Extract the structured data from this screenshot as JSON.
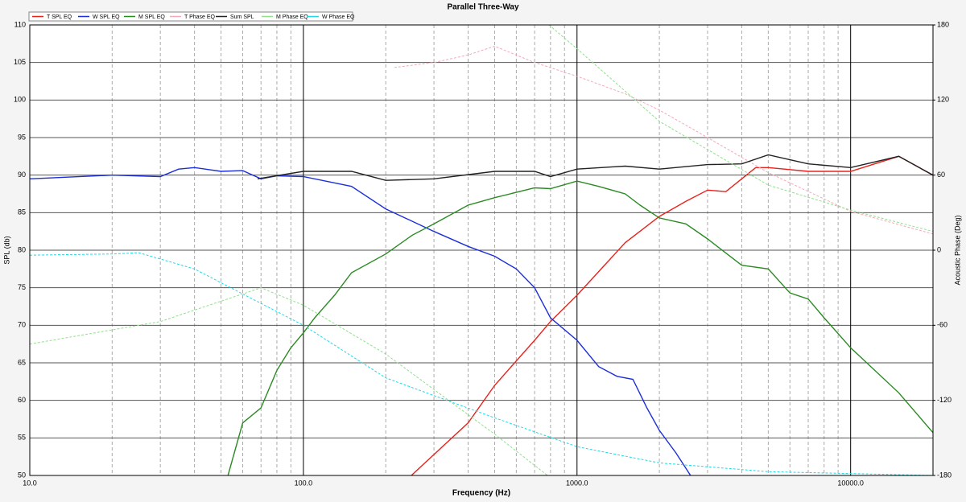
{
  "chart_data": {
    "type": "line",
    "title": "Parallel Three-Way",
    "x_label": "Frequency (Hz)",
    "y_label": "SPL (db)",
    "y2_label": "Acoustic Phase (Deg)",
    "xscale": "log",
    "xlim": [
      10,
      20000
    ],
    "xticks": [
      {
        "value": 10,
        "label": "10.0"
      },
      {
        "value": 100,
        "label": "100.0"
      },
      {
        "value": 1000,
        "label": "1000.0"
      },
      {
        "value": 10000,
        "label": "10000.0"
      }
    ],
    "x_minor_gridlines": [
      20,
      30,
      40,
      50,
      60,
      70,
      80,
      90,
      200,
      300,
      400,
      500,
      600,
      700,
      800,
      900,
      2000,
      3000,
      4000,
      5000,
      6000,
      7000,
      8000,
      9000
    ],
    "ylim": [
      50,
      110
    ],
    "yticks": [
      50,
      55,
      60,
      65,
      70,
      75,
      80,
      85,
      90,
      95,
      100,
      105,
      110
    ],
    "y2lim": [
      -180,
      180
    ],
    "y2ticks": [
      -180,
      -120,
      -60,
      0,
      60,
      120,
      180
    ],
    "grid": true,
    "legend": "top",
    "series": [
      {
        "name": "T SPL EQ",
        "color": "#e8231c",
        "x": [
          248,
          400,
          500,
          700,
          800,
          1000,
          1500,
          2000,
          2500,
          3000,
          3500,
          4000,
          4500,
          5000,
          7000,
          10000,
          15000,
          20000
        ],
        "values": [
          50,
          57,
          62,
          68,
          70.5,
          74,
          81,
          84.5,
          86.5,
          88,
          87.8,
          89.5,
          91,
          91,
          90.5,
          90.5,
          92.5,
          90
        ]
      },
      {
        "name": "W SPL EQ",
        "color": "#1c2fd6",
        "x": [
          10,
          20,
          30,
          35,
          40,
          50,
          60,
          70,
          80,
          100,
          150,
          200,
          300,
          400,
          500,
          600,
          700,
          800,
          1000,
          1200,
          1400,
          1600,
          1800,
          2000,
          2300,
          2600
        ],
        "values": [
          89.5,
          90,
          89.8,
          90.8,
          91,
          90.5,
          90.6,
          89.5,
          89.9,
          89.8,
          88.5,
          85.5,
          82.5,
          80.5,
          79.2,
          77.5,
          75,
          71,
          68,
          64.5,
          63.2,
          62.8,
          59,
          56,
          53,
          50
        ]
      },
      {
        "name": "M SPL EQ",
        "color": "#2a8a22",
        "x": [
          53,
          60,
          70,
          80,
          90,
          100,
          110,
          130,
          150,
          200,
          250,
          300,
          400,
          500,
          700,
          800,
          1000,
          1200,
          1500,
          1700,
          2000,
          2500,
          3000,
          4000,
          5000,
          6000,
          7000,
          8000,
          10000,
          15000,
          20000
        ],
        "values": [
          50,
          57,
          59,
          64,
          67,
          69,
          71,
          74,
          77,
          79.5,
          82,
          83.5,
          86,
          87,
          88.3,
          88.2,
          89.2,
          88.5,
          87.5,
          86,
          84.3,
          83.5,
          81.5,
          78,
          77.5,
          74.3,
          73.5,
          71,
          67,
          61,
          55.7
        ]
      },
      {
        "name": "T Phase EQ",
        "color": "#f4a9b8",
        "axis": "y2",
        "dashed": true,
        "x": [
          215,
          300,
          400,
          500,
          700,
          1000,
          1500,
          2000,
          3000,
          5000,
          10000,
          20000
        ],
        "values": [
          146,
          150,
          156,
          163,
          150,
          139,
          125,
          112,
          90,
          62,
          31,
          13
        ]
      },
      {
        "name": "Sum SPL",
        "color": "#222222",
        "x": [
          68,
          100,
          150,
          200,
          300,
          500,
          700,
          800,
          1000,
          1500,
          2000,
          3000,
          4000,
          5000,
          7000,
          10000,
          15000,
          20000
        ],
        "values": [
          89.5,
          90.5,
          90.5,
          89.3,
          89.5,
          90.5,
          90.5,
          89.8,
          90.8,
          91.2,
          90.8,
          91.4,
          91.5,
          92.7,
          91.5,
          91,
          92.5,
          90
        ]
      },
      {
        "name": "M Phase EQ",
        "color": "#8fe08a",
        "axis": "y2",
        "dashed": true,
        "x": [
          10,
          30,
          70,
          100,
          200,
          500,
          780,
          785,
          790,
          1000,
          2000,
          5000,
          10000,
          20000
        ],
        "values": [
          -75,
          -57,
          -30,
          -44,
          -83,
          -147,
          -180,
          null,
          180,
          161,
          103,
          52,
          32,
          15
        ]
      },
      {
        "name": "W Phase EQ",
        "color": "#22d8e8",
        "axis": "y2",
        "dashed": true,
        "x": [
          10,
          20,
          25,
          40,
          60,
          100,
          200,
          500,
          1000,
          2000,
          5000,
          20000
        ],
        "values": [
          -4,
          -3,
          -2,
          -15,
          -35,
          -60,
          -102,
          -134,
          -157,
          -170,
          -177,
          -180
        ]
      }
    ]
  }
}
